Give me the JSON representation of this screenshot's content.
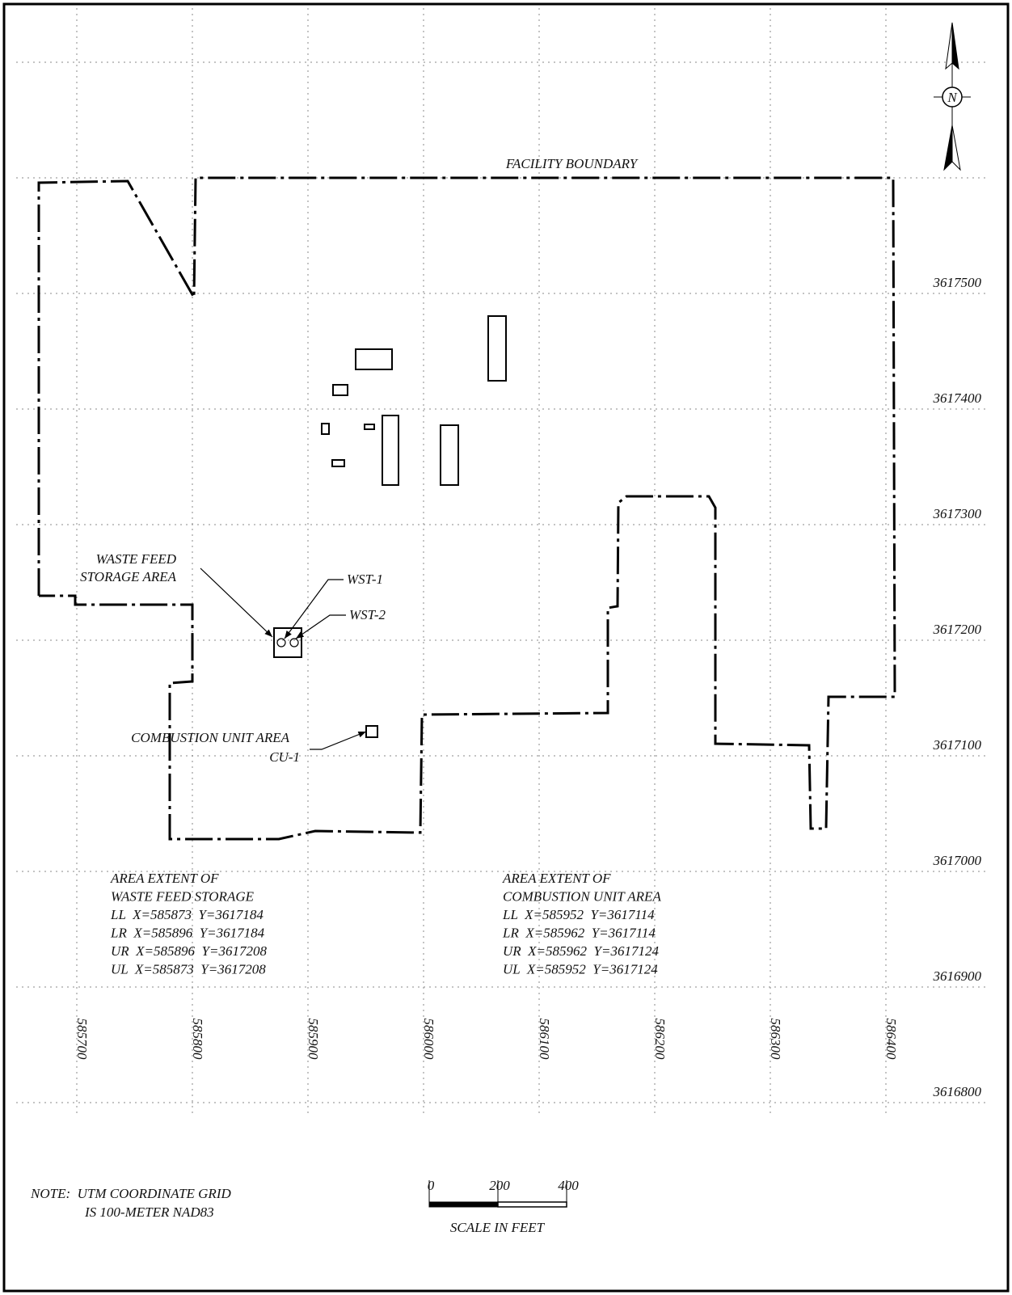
{
  "north": "N",
  "labels": {
    "facility_boundary": "FACILITY BOUNDARY",
    "waste_feed_storage": [
      "WASTE FEED",
      "STORAGE AREA"
    ],
    "wst_1": "WST-1",
    "wst_2": "WST-2",
    "combustion_unit": "COMBUSTION UNIT AREA",
    "cu_1": "CU-1"
  },
  "grid": {
    "x": [
      585700,
      585800,
      585900,
      586000,
      586100,
      586200,
      586300,
      586400
    ],
    "y": [
      3617500,
      3617400,
      3617300,
      3617200,
      3617100,
      3617000,
      3616900,
      3616800
    ]
  },
  "extents": [
    {
      "title": [
        "AREA EXTENT OF",
        "WASTE FEED STORAGE"
      ],
      "rows": [
        "LL  X=585873  Y=3617184",
        "LR  X=585896  Y=3617184",
        "UR  X=585896  Y=3617208",
        "UL  X=585873  Y=3617208"
      ]
    },
    {
      "title": [
        "AREA EXTENT OF",
        "COMBUSTION UNIT AREA"
      ],
      "rows": [
        "LL  X=585952  Y=3617114",
        "LR  X=585962  Y=3617114",
        "UR  X=585962  Y=3617124",
        "UL  X=585952  Y=3617124"
      ]
    }
  ],
  "scale": {
    "ticks": [
      0,
      200,
      400
    ],
    "label": "SCALE IN FEET"
  },
  "note": [
    "NOTE:  UTM COORDINATE GRID",
    "IS 100-METER NAD83"
  ]
}
